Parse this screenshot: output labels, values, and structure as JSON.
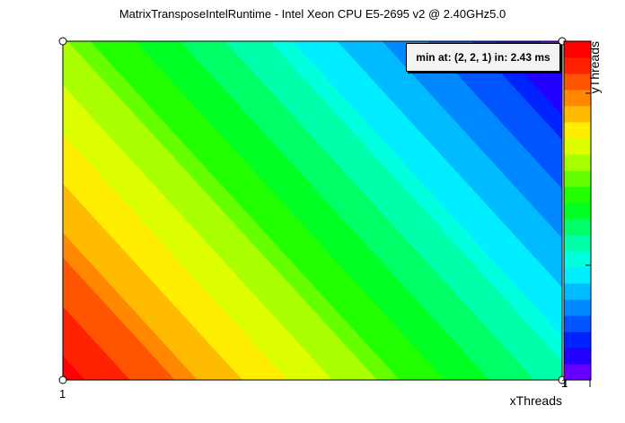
{
  "chart_data": {
    "type": "heatmap",
    "title": "MatrixTransposeIntelRuntime - Intel Xeon CPU E5-2695 v2 @ 2.40GHz5.0",
    "xlabel": "xThreads",
    "ylabel": "yThreads",
    "x_ticks": [
      "1",
      "1"
    ],
    "y_ticks": [],
    "annotation": "min at: (2, 2, 1) in: 2.43 ms",
    "gradient_direction": "value highest at bottom-left, lowest at top-right",
    "colorscale": [
      "#6600ff",
      "#2200ff",
      "#0022ff",
      "#0055ff",
      "#0088ff",
      "#00bbff",
      "#00eeff",
      "#00ffdd",
      "#00ffaa",
      "#00ff66",
      "#00ff22",
      "#22ff00",
      "#66ff00",
      "#aaff00",
      "#ddff00",
      "#ffee00",
      "#ffbb00",
      "#ff8800",
      "#ff5500",
      "#ff2200",
      "#ff0000"
    ]
  }
}
